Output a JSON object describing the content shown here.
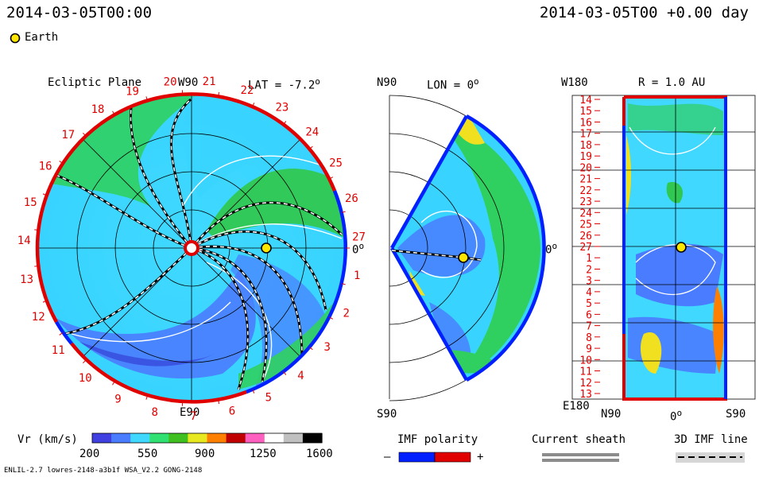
{
  "header": {
    "timestamp_left": "2014-03-05T00:00",
    "timestamp_right": "2014-03-05T00 +0.00 day",
    "earth_legend": "Earth"
  },
  "ecliptic": {
    "title": "Ecliptic Plane",
    "lat_label": "LAT = -7.2",
    "degree_sign": "o",
    "top_label": "W90",
    "bottom_label": "E90",
    "right_label": "0",
    "carrington_days": [
      "19",
      "20",
      "21",
      "22",
      "23",
      "24",
      "25",
      "26",
      "27",
      "1",
      "2",
      "3",
      "4",
      "5",
      "6",
      "7",
      "8",
      "9",
      "10",
      "11",
      "12",
      "13",
      "14",
      "15",
      "16",
      "17",
      "18"
    ]
  },
  "meridional": {
    "lon_label": "LON = 0",
    "top_label": "N90",
    "bottom_label": "S90",
    "right_label": "0"
  },
  "radial": {
    "title": "R = 1.0 AU",
    "top_left_label": "W180",
    "bottom_left_label": "E180",
    "x_ticks": [
      "N90",
      "0",
      "S90"
    ],
    "days": [
      "14",
      "15",
      "16",
      "17",
      "18",
      "19",
      "20",
      "21",
      "22",
      "23",
      "24",
      "25",
      "26",
      "27",
      "1",
      "2",
      "3",
      "4",
      "5",
      "6",
      "7",
      "8",
      "9",
      "10",
      "11",
      "12",
      "13"
    ]
  },
  "colorbar": {
    "label": "Vr (km/s)",
    "ticks": [
      "200",
      "550",
      "900",
      "1250",
      "1600"
    ],
    "colors": [
      "#4040e0",
      "#4a7cff",
      "#40d8ff",
      "#30e070",
      "#40c020",
      "#e8e820",
      "#ff8000",
      "#c00000",
      "#ff60c0",
      "#ffffff",
      "#c0c0c0",
      "#000000"
    ]
  },
  "legend": {
    "imf_title": "IMF polarity",
    "imf_minus": "–",
    "imf_plus": "+",
    "sheath_title": "Current sheath",
    "imf3d_title": "3D IMF line"
  },
  "footer": {
    "model_info": "ENLIL-2.7 lowres-2148-a3b1f WSA_V2.2 GONG-2148"
  },
  "chart_data": {
    "type": "heatmap",
    "variable": "Vr (km/s)",
    "colorbar_range": [
      200,
      1600
    ],
    "earth_radius_au": 1.0,
    "earth_longitude_deg": 0
  }
}
